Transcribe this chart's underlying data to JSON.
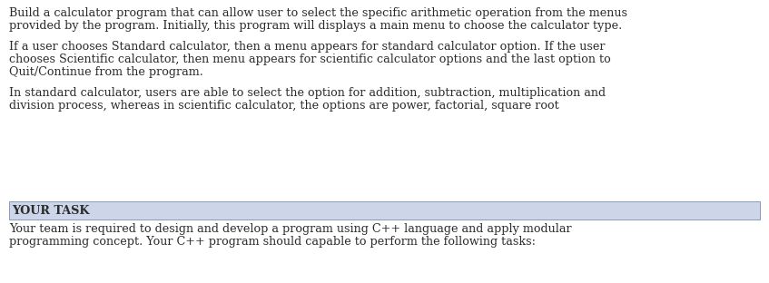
{
  "background_color": "#ffffff",
  "text_color": "#2b2b2b",
  "section_bg_color": "#cdd5e8",
  "border_color": "#8899bb",
  "font_size": 9.2,
  "section_font_size": 9.2,
  "para1_lines": [
    "Build a calculator program that can allow user to select the specific arithmetic operation from the menus",
    "provided by the program. Initially, this program will displays a main menu to choose the calculator type."
  ],
  "para2_lines": [
    "If a user chooses Standard calculator, then a menu appears for standard calculator option. If the user",
    "chooses Scientific calculator, then menu appears for scientific calculator options and the last option to",
    "Quit/Continue from the program."
  ],
  "para3_lines": [
    "In standard calculator, users are able to select the option for addition, subtraction, multiplication and",
    "division process, whereas in scientific calculator, the options are power, factorial, square root"
  ],
  "section_title": "YOUR TASK",
  "section_body_line1": "Your team is required to design and develop a program using C++ language and apply modular",
  "section_body_line2": "programming concept. Your C++ program should capable to perform the following tasks:"
}
